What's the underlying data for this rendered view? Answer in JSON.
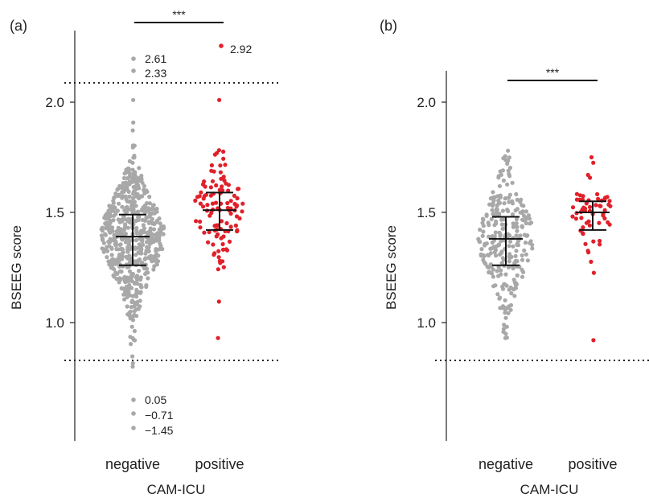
{
  "chart_data": [
    {
      "panel_label": "(a)",
      "type": "scatter",
      "subtype": "beeswarm",
      "ylabel": "BSEEG score",
      "xlabel": "CAM-ICU",
      "categories": [
        "negative",
        "positive"
      ],
      "yticks": [
        "1.0",
        "1.5",
        "2.0"
      ],
      "ylim": [
        0.75,
        2.1
      ],
      "axis_break": true,
      "significance": {
        "from": "negative",
        "to": "positive",
        "label": "***"
      },
      "series": [
        {
          "category": "negative",
          "color": "#a8a8a8",
          "n_points": 600,
          "median": 1.39,
          "q1": 1.26,
          "q3": 1.49,
          "min": 0.8,
          "max": 2.01
        },
        {
          "category": "positive",
          "color": "#e0202a",
          "n_points": 110,
          "median": 1.51,
          "q1": 1.42,
          "q3": 1.59,
          "min": 0.93,
          "max": 2.01
        }
      ],
      "outliers": [
        {
          "category": "negative",
          "region": "above",
          "value": "2.61"
        },
        {
          "category": "negative",
          "region": "above",
          "value": "2.33"
        },
        {
          "category": "positive",
          "region": "above",
          "value": "2.92"
        },
        {
          "category": "negative",
          "region": "below",
          "value": "0.05"
        },
        {
          "category": "negative",
          "region": "below",
          "value": "−0.71"
        },
        {
          "category": "negative",
          "region": "below",
          "value": "−1.45"
        }
      ]
    },
    {
      "panel_label": "(b)",
      "type": "scatter",
      "subtype": "beeswarm",
      "ylabel": "BSEEG score",
      "xlabel": "CAM-ICU",
      "categories": [
        "negative",
        "positive"
      ],
      "yticks": [
        "1.0",
        "1.5",
        "2.0"
      ],
      "ylim": [
        0.75,
        2.1
      ],
      "axis_break": true,
      "significance": {
        "from": "negative",
        "to": "positive",
        "label": "***"
      },
      "series": [
        {
          "category": "negative",
          "color": "#a8a8a8",
          "n_points": 270,
          "median": 1.38,
          "q1": 1.26,
          "q3": 1.48,
          "min": 0.93,
          "max": 1.78
        },
        {
          "category": "positive",
          "color": "#e0202a",
          "n_points": 60,
          "median": 1.5,
          "q1": 1.42,
          "q3": 1.55,
          "min": 0.92,
          "max": 1.75
        }
      ],
      "outliers": []
    }
  ]
}
